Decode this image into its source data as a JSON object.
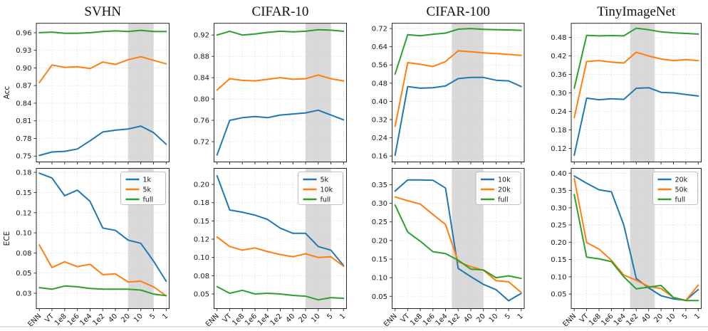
{
  "figure": {
    "x_axis_labels": [
      "ENN",
      "VT",
      "1e8",
      "1e6",
      "1e4",
      "1e2",
      "40",
      "20",
      "10",
      "5",
      "1"
    ],
    "row_metrics": [
      "Acc",
      "ECE"
    ],
    "column_titles": [
      "SVHN",
      "CIFAR-10",
      "CIFAR-100",
      "TinyImageNet"
    ]
  },
  "colors": {
    "series_blue": "#1f77b4",
    "series_orange": "#ff7f0e",
    "series_green": "#2ca02c",
    "highlight_band": "#d9d9d9",
    "grid": "#cccccc",
    "axis": "#262626",
    "text": "#1a1a1a",
    "window_bottom_border": "#d7e2ee"
  },
  "chart_data": [
    {
      "type": "line",
      "dataset": "SVHN",
      "metric": "Acc",
      "title": "SVHN",
      "ylabel": "Acc",
      "categories": [
        "ENN",
        "VT",
        "1e8",
        "1e6",
        "1e4",
        "1e2",
        "40",
        "20",
        "10",
        "5",
        "1"
      ],
      "ylim": [
        0.74,
        0.976
      ],
      "yticks": [
        0.75,
        0.78,
        0.81,
        0.84,
        0.87,
        0.9,
        0.93,
        0.96
      ],
      "ytick_labels": [
        "0.75",
        "0.78",
        "0.81",
        "0.84",
        "0.87",
        "0.90",
        "0.93",
        "0.96"
      ],
      "band_x": [
        7,
        9
      ],
      "grid": true,
      "legend_position": null,
      "show_x_tick_labels": false,
      "series": [
        {
          "name": "1k",
          "color": "#1f77b4",
          "values": [
            0.751,
            0.757,
            0.758,
            0.762,
            0.776,
            0.791,
            0.794,
            0.796,
            0.801,
            0.79,
            0.77
          ]
        },
        {
          "name": "5k",
          "color": "#ff7f0e",
          "values": [
            0.875,
            0.905,
            0.901,
            0.902,
            0.899,
            0.91,
            0.906,
            0.914,
            0.919,
            0.913,
            0.907
          ]
        },
        {
          "name": "full",
          "color": "#2ca02c",
          "values": [
            0.96,
            0.961,
            0.959,
            0.959,
            0.96,
            0.962,
            0.963,
            0.962,
            0.964,
            0.962,
            0.962
          ]
        }
      ]
    },
    {
      "type": "line",
      "dataset": "CIFAR-10",
      "metric": "Acc",
      "title": "CIFAR-10",
      "ylabel": "",
      "categories": [
        "ENN",
        "VT",
        "1e8",
        "1e6",
        "1e4",
        "1e2",
        "40",
        "20",
        "10",
        "5",
        "1"
      ],
      "ylim": [
        0.682,
        0.942
      ],
      "yticks": [
        0.72,
        0.76,
        0.8,
        0.84,
        0.88,
        0.92
      ],
      "ytick_labels": [
        "0.72",
        "0.76",
        "0.80",
        "0.84",
        "0.88",
        "0.92"
      ],
      "band_x": [
        7,
        9
      ],
      "grid": true,
      "legend_position": null,
      "show_x_tick_labels": false,
      "series": [
        {
          "name": "5k",
          "color": "#1f77b4",
          "values": [
            0.695,
            0.76,
            0.765,
            0.767,
            0.765,
            0.77,
            0.772,
            0.774,
            0.779,
            0.77,
            0.761
          ]
        },
        {
          "name": "10k",
          "color": "#ff7f0e",
          "values": [
            0.817,
            0.838,
            0.835,
            0.834,
            0.837,
            0.84,
            0.837,
            0.838,
            0.845,
            0.838,
            0.834
          ]
        },
        {
          "name": "full",
          "color": "#2ca02c",
          "values": [
            0.92,
            0.927,
            0.92,
            0.922,
            0.925,
            0.927,
            0.926,
            0.927,
            0.93,
            0.929,
            0.927
          ]
        }
      ]
    },
    {
      "type": "line",
      "dataset": "CIFAR-100",
      "metric": "Acc",
      "title": "CIFAR-100",
      "ylabel": "",
      "categories": [
        "ENN",
        "VT",
        "1e8",
        "1e6",
        "1e4",
        "1e2",
        "40",
        "20",
        "10",
        "5",
        "1"
      ],
      "ylim": [
        0.134,
        0.743
      ],
      "yticks": [
        0.16,
        0.24,
        0.32,
        0.4,
        0.48,
        0.56,
        0.64,
        0.72
      ],
      "ytick_labels": [
        "0.16",
        "0.24",
        "0.32",
        "0.40",
        "0.48",
        "0.56",
        "0.64",
        "0.72"
      ],
      "band_x": [
        4.5,
        7
      ],
      "grid": true,
      "legend_position": null,
      "show_x_tick_labels": false,
      "series": [
        {
          "name": "10k",
          "color": "#1f77b4",
          "values": [
            0.163,
            0.465,
            0.458,
            0.46,
            0.468,
            0.5,
            0.505,
            0.505,
            0.493,
            0.49,
            0.465
          ]
        },
        {
          "name": "20k",
          "color": "#ff7f0e",
          "values": [
            0.29,
            0.57,
            0.563,
            0.553,
            0.575,
            0.622,
            0.618,
            0.613,
            0.61,
            0.606,
            0.602
          ]
        },
        {
          "name": "full",
          "color": "#2ca02c",
          "values": [
            0.52,
            0.693,
            0.688,
            0.695,
            0.7,
            0.717,
            0.72,
            0.716,
            0.715,
            0.714,
            0.712
          ]
        }
      ]
    },
    {
      "type": "line",
      "dataset": "TinyImageNet",
      "metric": "Acc",
      "title": "TinyImageNet",
      "ylabel": "",
      "categories": [
        "ENN",
        "VT",
        "1e8",
        "1e6",
        "1e4",
        "1e2",
        "40",
        "20",
        "10",
        "5",
        "1"
      ],
      "ylim": [
        0.076,
        0.526
      ],
      "yticks": [
        0.12,
        0.18,
        0.24,
        0.3,
        0.36,
        0.42,
        0.48
      ],
      "ytick_labels": [
        "0.12",
        "0.18",
        "0.24",
        "0.30",
        "0.36",
        "0.42",
        "0.48"
      ],
      "band_x": [
        4.5,
        6.5
      ],
      "grid": true,
      "legend_position": null,
      "show_x_tick_labels": false,
      "series": [
        {
          "name": "20k",
          "color": "#1f77b4",
          "values": [
            0.098,
            0.283,
            0.278,
            0.281,
            0.279,
            0.315,
            0.317,
            0.302,
            0.3,
            0.295,
            0.29
          ]
        },
        {
          "name": "50k",
          "color": "#ff7f0e",
          "values": [
            0.22,
            0.402,
            0.405,
            0.4,
            0.397,
            0.432,
            0.42,
            0.41,
            0.405,
            0.408,
            0.405
          ]
        },
        {
          "name": "full",
          "color": "#2ca02c",
          "values": [
            0.315,
            0.487,
            0.485,
            0.486,
            0.485,
            0.51,
            0.505,
            0.498,
            0.495,
            0.493,
            0.491
          ]
        }
      ]
    },
    {
      "type": "line",
      "dataset": "SVHN",
      "metric": "ECE",
      "title": "",
      "ylabel": "ECE",
      "categories": [
        "ENN",
        "VT",
        "1e8",
        "1e6",
        "1e4",
        "1e2",
        "40",
        "20",
        "10",
        "5",
        "1"
      ],
      "ylim": [
        0.006,
        0.18
      ],
      "yticks": [
        0.025,
        0.05,
        0.075,
        0.1,
        0.125,
        0.15,
        0.175
      ],
      "ytick_labels": [
        "0.03",
        "0.05",
        "0.08",
        "0.10",
        "0.12",
        "0.15",
        "0.18"
      ],
      "band_x": [
        7,
        9
      ],
      "grid": true,
      "legend_position": "upper right",
      "show_x_tick_labels": true,
      "series": [
        {
          "name": "1k",
          "color": "#1f77b4",
          "values": [
            0.174,
            0.168,
            0.146,
            0.153,
            0.139,
            0.106,
            0.103,
            0.091,
            0.087,
            0.065,
            0.04
          ]
        },
        {
          "name": "5k",
          "color": "#ff7f0e",
          "values": [
            0.085,
            0.057,
            0.064,
            0.058,
            0.061,
            0.048,
            0.049,
            0.039,
            0.04,
            0.033,
            0.022
          ]
        },
        {
          "name": "full",
          "color": "#2ca02c",
          "values": [
            0.032,
            0.03,
            0.034,
            0.033,
            0.031,
            0.03,
            0.03,
            0.03,
            0.029,
            0.024,
            0.022
          ]
        }
      ]
    },
    {
      "type": "line",
      "dataset": "CIFAR-10",
      "metric": "ECE",
      "title": "",
      "ylabel": "",
      "categories": [
        "ENN",
        "VT",
        "1e8",
        "1e6",
        "1e4",
        "1e2",
        "40",
        "20",
        "10",
        "5",
        "1"
      ],
      "ylim": [
        0.03,
        0.222
      ],
      "yticks": [
        0.05,
        0.075,
        0.1,
        0.125,
        0.15,
        0.175,
        0.2
      ],
      "ytick_labels": [
        "0.05",
        "0.08",
        "0.10",
        "0.12",
        "0.15",
        "0.18",
        "0.20"
      ],
      "band_x": [
        7,
        9
      ],
      "grid": true,
      "legend_position": "upper right",
      "show_x_tick_labels": true,
      "series": [
        {
          "name": "5k",
          "color": "#1f77b4",
          "values": [
            0.212,
            0.165,
            0.162,
            0.158,
            0.152,
            0.14,
            0.133,
            0.133,
            0.115,
            0.11,
            0.089
          ]
        },
        {
          "name": "10k",
          "color": "#ff7f0e",
          "values": [
            0.128,
            0.115,
            0.11,
            0.113,
            0.108,
            0.104,
            0.101,
            0.105,
            0.1,
            0.101,
            0.088
          ]
        },
        {
          "name": "full",
          "color": "#2ca02c",
          "values": [
            0.06,
            0.051,
            0.055,
            0.05,
            0.051,
            0.05,
            0.048,
            0.047,
            0.042,
            0.045,
            0.044
          ]
        }
      ]
    },
    {
      "type": "line",
      "dataset": "CIFAR-100",
      "metric": "ECE",
      "title": "",
      "ylabel": "",
      "categories": [
        "ENN",
        "VT",
        "1e8",
        "1e6",
        "1e4",
        "1e2",
        "40",
        "20",
        "10",
        "5",
        "1"
      ],
      "ylim": [
        0.017,
        0.394
      ],
      "yticks": [
        0.05,
        0.1,
        0.15,
        0.2,
        0.25,
        0.3,
        0.35
      ],
      "ytick_labels": [
        "0.05",
        "0.10",
        "0.15",
        "0.20",
        "0.25",
        "0.30",
        "0.35"
      ],
      "band_x": [
        4.5,
        7
      ],
      "grid": true,
      "legend_position": "upper right",
      "show_x_tick_labels": true,
      "series": [
        {
          "name": "10k",
          "color": "#1f77b4",
          "values": [
            0.333,
            0.363,
            0.363,
            0.362,
            0.341,
            0.125,
            0.103,
            0.082,
            0.068,
            0.038,
            0.058
          ]
        },
        {
          "name": "20k",
          "color": "#ff7f0e",
          "values": [
            0.317,
            0.307,
            0.298,
            0.27,
            0.243,
            0.143,
            0.13,
            0.12,
            0.092,
            0.089,
            0.06
          ]
        },
        {
          "name": "full",
          "color": "#2ca02c",
          "values": [
            0.295,
            0.223,
            0.198,
            0.17,
            0.165,
            0.147,
            0.123,
            0.121,
            0.1,
            0.105,
            0.098
          ]
        }
      ]
    },
    {
      "type": "line",
      "dataset": "TinyImageNet",
      "metric": "ECE",
      "title": "",
      "ylabel": "",
      "categories": [
        "ENN",
        "VT",
        "1e8",
        "1e6",
        "1e4",
        "1e2",
        "40",
        "20",
        "10",
        "5",
        "1"
      ],
      "ylim": [
        0.008,
        0.414
      ],
      "yticks": [
        0.05,
        0.1,
        0.15,
        0.2,
        0.25,
        0.3,
        0.35,
        0.4
      ],
      "ytick_labels": [
        "0.05",
        "0.10",
        "0.15",
        "0.20",
        "0.25",
        "0.30",
        "0.35",
        "0.40"
      ],
      "band_x": [
        4.5,
        6.5
      ],
      "grid": true,
      "legend_position": "upper right",
      "show_x_tick_labels": true,
      "series": [
        {
          "name": "20k",
          "color": "#1f77b4",
          "values": [
            0.392,
            0.371,
            0.352,
            0.346,
            0.25,
            0.095,
            0.068,
            0.045,
            0.036,
            0.032,
            0.063
          ]
        },
        {
          "name": "50k",
          "color": "#ff7f0e",
          "values": [
            0.385,
            0.199,
            0.18,
            0.148,
            0.105,
            0.09,
            0.072,
            0.066,
            0.04,
            0.032,
            0.076
          ]
        },
        {
          "name": "full",
          "color": "#2ca02c",
          "values": [
            0.338,
            0.157,
            0.152,
            0.144,
            0.1,
            0.065,
            0.07,
            0.075,
            0.04,
            0.031,
            0.031
          ]
        }
      ]
    }
  ]
}
